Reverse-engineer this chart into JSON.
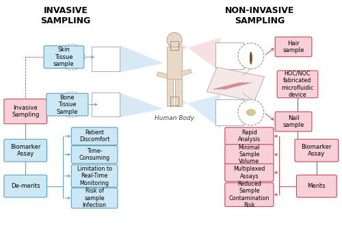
{
  "bg_color": "#ffffff",
  "title_left": "INVASIVE\nSAMPLING",
  "title_right": "NON-INVASIVE\nSAMPLING",
  "title_fontsize": 9,
  "lfc": "#cce8f4",
  "le": "#5a9fc0",
  "rfc": "#f9d0d8",
  "re": "#c0495a",
  "pink_fc": "#f9d0d8",
  "pink_ec": "#c0495a",
  "lc": "#5a9fc0",
  "rc": "#c0495a",
  "beam_blue": "#c5ddf0",
  "beam_pink": "#f0d0d8",
  "demerits_items": [
    "Patient\nDiscomfort",
    "Time-\nConsuming",
    "Limitation to\nReal-Time\nMonitoring",
    "Risk of\nsample\nInfection"
  ],
  "merits_items": [
    "Rapid\nAnalysis",
    "Minimal\nSample\nVolume",
    "Multiplexed\nAssays",
    "Reduced\nSample\nContamination\nRisk"
  ],
  "human_body_label": "Human Body"
}
